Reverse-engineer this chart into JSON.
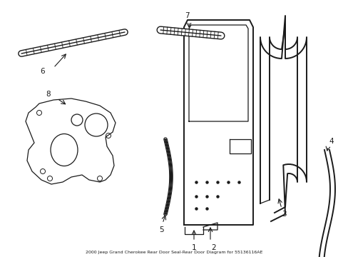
{
  "title": "2000 Jeep Grand Cherokee Rear Door Seal-Rear Door Diagram for 55136116AE",
  "bg_color": "#ffffff",
  "line_color": "#1a1a1a",
  "fig_width": 4.89,
  "fig_height": 3.6,
  "dpi": 100
}
